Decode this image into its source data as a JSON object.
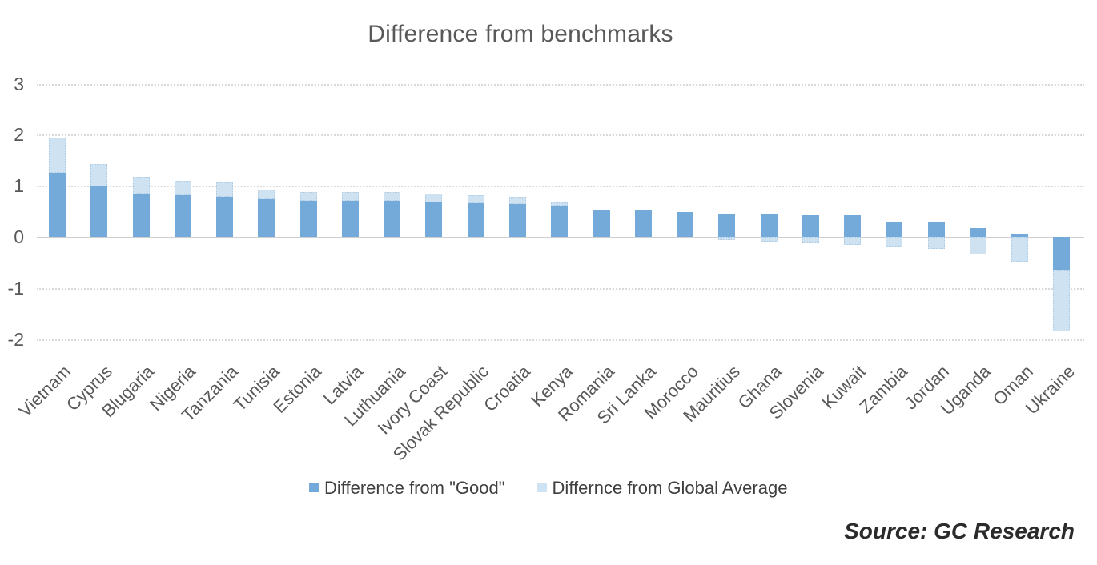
{
  "title": "Difference from benchmarks",
  "source": "Source: GC Research",
  "colors": {
    "good": "#74aad9",
    "global_average": "#cfe2f2",
    "text_gray": "#595959",
    "gridline": "#d9d9d9"
  },
  "legend": [
    {
      "label": "Difference from \"Good\"",
      "color": "#74aad9"
    },
    {
      "label": "Differnce from Global Average",
      "color": "#cfe2f2"
    }
  ],
  "chart_data": {
    "type": "bar",
    "stacked": true,
    "title": "Difference from benchmarks",
    "xlabel": "",
    "ylabel": "",
    "ylim": [
      -2.3,
      3.2
    ],
    "yticks": [
      3,
      2,
      1,
      0,
      -1,
      -2
    ],
    "grid": "horizontal-dotted",
    "legend_position": "bottom-center",
    "categories": [
      "Vietnam",
      "Cyprus",
      "Blugaria",
      "Nigeria",
      "Tanzania",
      "Tunisia",
      "Estonia",
      "Latvia",
      "Luthuania",
      "Ivory Coast",
      "Slovak Republic",
      "Croatia",
      "Kenya",
      "Romania",
      "Sri Lanka",
      "Morocco",
      "Mauritius",
      "Ghana",
      "Slovenia",
      "Kuwait",
      "Zambia",
      "Jordan",
      "Uganda",
      "Oman",
      "Ukraine"
    ],
    "series": [
      {
        "name": "Difference from \"Good\"",
        "key": "good",
        "color": "#74aad9",
        "values": [
          1.25,
          0.98,
          0.85,
          0.81,
          0.79,
          0.73,
          0.7,
          0.7,
          0.71,
          0.68,
          0.66,
          0.65,
          0.61,
          0.53,
          0.51,
          0.49,
          0.46,
          0.44,
          0.43,
          0.42,
          0.3,
          0.3,
          0.18,
          0.04,
          -0.66
        ]
      },
      {
        "name": "Differnce from Global Average",
        "key": "global-average",
        "color": "#cfe2f2",
        "values": [
          0.7,
          0.45,
          0.33,
          0.29,
          0.27,
          0.2,
          0.18,
          0.18,
          0.16,
          0.17,
          0.16,
          0.13,
          0.07,
          0,
          0,
          0,
          -0.07,
          -0.1,
          -0.12,
          -0.15,
          -0.21,
          -0.23,
          -0.34,
          -0.49,
          -1.19
        ]
      }
    ]
  }
}
